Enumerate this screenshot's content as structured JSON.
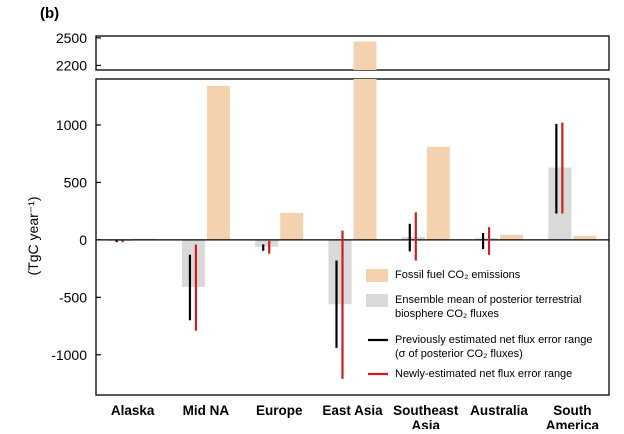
{
  "panel_label": "(b)",
  "chart_data": {
    "type": "bar",
    "ylabel": "(TgC year⁻¹)",
    "broken_axis": true,
    "ylim_lower": [
      -1350,
      1400
    ],
    "ylim_upper": [
      2150,
      2520
    ],
    "yticks_lower": [
      "1000",
      "500",
      "0",
      "-500",
      "-1000"
    ],
    "yticks_upper": [
      "2500",
      "2200"
    ],
    "yticks_lower_values": [
      1000,
      500,
      0,
      -500,
      -1000
    ],
    "yticks_upper_values": [
      2500,
      2200
    ],
    "categories": [
      "Alaska",
      "Mid NA",
      "Europe",
      "East Asia",
      "Southeast Asia",
      "Australia",
      "South America"
    ],
    "category_lines": [
      [
        "Alaska"
      ],
      [
        "Mid NA"
      ],
      [
        "Europe"
      ],
      [
        "East Asia"
      ],
      [
        "Southeast",
        "Asia"
      ],
      [
        "Australia"
      ],
      [
        "South",
        "America"
      ]
    ],
    "series": [
      {
        "name": "Fossil fuel CO₂ emissions",
        "key": "fossil",
        "color": "#f4d2b0",
        "values": [
          10,
          1340,
          235,
          2460,
          810,
          45,
          35
        ]
      },
      {
        "name": "Ensemble mean of posterior terrestrial biosphere CO₂ fluxes",
        "key": "bio",
        "color": "#d9d9d9",
        "values": [
          -10,
          -410,
          -60,
          -560,
          25,
          15,
          630
        ]
      }
    ],
    "error_ranges": [
      {
        "name": "Previously estimated net flux error range (σ of posterior CO₂ fluxes)",
        "key": "prev",
        "color": "#000000",
        "ranges": [
          [
            -20,
            -5
          ],
          [
            -700,
            -130
          ],
          [
            -95,
            -40
          ],
          [
            -940,
            -180
          ],
          [
            -100,
            140
          ],
          [
            -80,
            60
          ],
          [
            230,
            1010
          ]
        ]
      },
      {
        "name": "Newly-estimated net flux error range",
        "key": "new",
        "color": "#cc1f1f",
        "ranges": [
          [
            -20,
            -5
          ],
          [
            -790,
            -40
          ],
          [
            -120,
            -10
          ],
          [
            -1210,
            80
          ],
          [
            -180,
            240
          ],
          [
            -130,
            110
          ],
          [
            230,
            1020
          ]
        ]
      }
    ],
    "legend": {
      "placement": "bottom-right",
      "entries": [
        {
          "lines": [
            "Fossil fuel CO₂ emissions"
          ],
          "swatch": "fossil"
        },
        {
          "lines": [
            "Ensemble mean of posterior terrestrial",
            "biosphere CO₂ fluxes"
          ],
          "swatch": "bio"
        },
        {
          "lines": [
            "Previously estimated net flux error range",
            "(σ of posterior CO₂ fluxes)"
          ],
          "swatch": "prev"
        },
        {
          "lines": [
            "Newly-estimated net flux error range"
          ],
          "swatch": "new"
        }
      ]
    },
    "grid": false
  }
}
